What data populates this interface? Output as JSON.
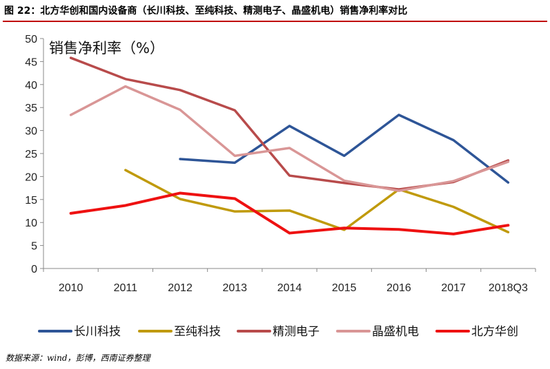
{
  "figure_title": "图 22：北方华创和国内设备商（长川科技、至纯科技、精测电子、晶盛机电）销售净利率对比",
  "source_note": "数据来源：wind，彭博，西南证券整理",
  "chart_data": {
    "type": "line",
    "ylabel": "销售净利率（%）",
    "ylim": [
      0,
      50
    ],
    "yticks": [
      0,
      5,
      10,
      15,
      20,
      25,
      30,
      35,
      40,
      45,
      50
    ],
    "categories": [
      "2010",
      "2011",
      "2012",
      "2013",
      "2014",
      "2015",
      "2016",
      "2017",
      "2018Q3"
    ],
    "grid": false,
    "legend_position": "bottom",
    "series": [
      {
        "name": "长川科技",
        "color": "#2e5597",
        "values": [
          null,
          null,
          23.8,
          23.0,
          31.0,
          24.5,
          33.4,
          27.9,
          18.7
        ]
      },
      {
        "name": "至纯科技",
        "color": "#c09a0c",
        "values": [
          null,
          21.4,
          15.1,
          12.4,
          12.6,
          8.4,
          17.2,
          13.4,
          7.9
        ]
      },
      {
        "name": "精测电子",
        "color": "#b84b4b",
        "values": [
          45.8,
          41.2,
          38.8,
          34.4,
          20.2,
          18.6,
          17.2,
          18.8,
          23.5
        ]
      },
      {
        "name": "晶盛机电",
        "color": "#d99696",
        "values": [
          33.4,
          39.6,
          34.5,
          24.5,
          26.2,
          19.1,
          16.9,
          19.0,
          23.2
        ]
      },
      {
        "name": "北方华创",
        "color": "#ee1111",
        "values": [
          12.0,
          13.7,
          16.4,
          15.2,
          7.7,
          8.8,
          8.5,
          7.5,
          9.4
        ]
      }
    ]
  }
}
